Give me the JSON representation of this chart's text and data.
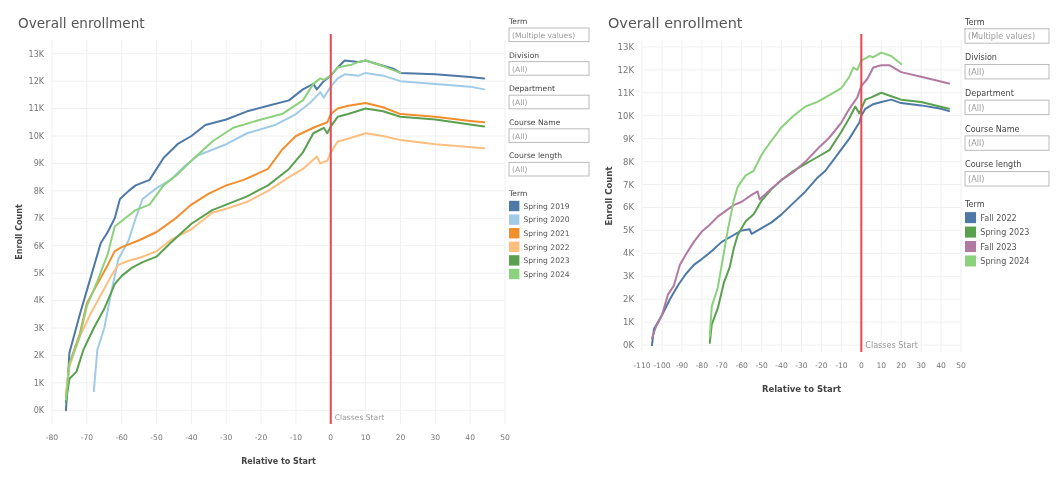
{
  "chart_data": [
    {
      "type": "line",
      "title": "Overall enrollment",
      "xlabel": "Relative to Start",
      "ylabel": "Enroll Count",
      "legend_title": "Term",
      "legend": "right",
      "grid": true,
      "annotations": [
        "Term",
        "(Multiple values)",
        "Division",
        "(All)",
        "Department",
        "(All)",
        "Course Name",
        "(All)",
        "Course length",
        "(All)"
      ],
      "xlim": [
        -80,
        50
      ],
      "xticks": [
        -80,
        -70,
        -60,
        -50,
        -40,
        -30,
        -20,
        -10,
        0,
        10,
        20,
        30,
        40,
        50
      ],
      "ylim": [
        -500,
        13500
      ],
      "yticks": [
        {
          "value": 0,
          "label": "0K"
        },
        {
          "value": 1000,
          "label": "1K"
        },
        {
          "value": 2000,
          "label": "2K"
        },
        {
          "value": 3000,
          "label": "3K"
        },
        {
          "value": 4000,
          "label": "4K"
        },
        {
          "value": 5000,
          "label": "5K"
        },
        {
          "value": 6000,
          "label": "6K"
        },
        {
          "value": 7000,
          "label": "7K"
        },
        {
          "value": 8000,
          "label": "8K"
        },
        {
          "value": 9000,
          "label": "9K"
        },
        {
          "value": 10000,
          "label": "10K"
        },
        {
          "value": 11000,
          "label": "11K"
        },
        {
          "value": 12000,
          "label": "12K"
        },
        {
          "value": 13000,
          "label": "13K"
        }
      ],
      "ref_lines": [
        {
          "axis": "x",
          "value": 0,
          "label": "Classes Start",
          "color": "#e8484f"
        }
      ],
      "series": [
        {
          "name": "Spring 2019",
          "color": "#4e79a7",
          "x": [
            -76,
            -75,
            -72,
            -69,
            -66,
            -64,
            -62,
            -60.5,
            -58,
            -56,
            -52,
            -48,
            -44,
            -40,
            -36,
            -30,
            -24,
            -18,
            -12,
            -8,
            -5,
            -4,
            -2,
            0,
            2,
            4,
            8,
            10,
            14,
            18,
            20,
            30,
            40,
            44
          ],
          "values": [
            0,
            2100,
            3500,
            4800,
            6100,
            6500,
            7000,
            7700,
            8000,
            8200,
            8400,
            9200,
            9700,
            10000,
            10400,
            10600,
            10900,
            11100,
            11300,
            11700,
            11900,
            11700,
            12000,
            12200,
            12500,
            12750,
            12700,
            12750,
            12600,
            12450,
            12300,
            12250,
            12150,
            12100
          ]
        },
        {
          "name": "Spring 2020",
          "color": "#a0cbe8",
          "x": [
            -68,
            -67,
            -65,
            -63,
            -61,
            -58,
            -56,
            -54,
            -50,
            -46,
            -42,
            -38,
            -30,
            -24,
            -16,
            -10,
            -6,
            -3,
            -2,
            0,
            2,
            4,
            8,
            10,
            15,
            20,
            30,
            40,
            44
          ],
          "values": [
            700,
            2200,
            3000,
            4300,
            5500,
            6200,
            7000,
            7700,
            8100,
            8400,
            8900,
            9300,
            9700,
            10100,
            10400,
            10800,
            11200,
            11600,
            11400,
            11800,
            12100,
            12250,
            12200,
            12300,
            12200,
            12000,
            11900,
            11800,
            11700
          ]
        },
        {
          "name": "Spring 2021",
          "color": "#f28e2b",
          "x": [
            -76,
            -75,
            -72,
            -70,
            -67,
            -64,
            -62,
            -60,
            -55,
            -50,
            -45,
            -40,
            -35,
            -30,
            -25,
            -18,
            -14,
            -10,
            -5,
            -1,
            0,
            2,
            5,
            10,
            15,
            20,
            30,
            40,
            44
          ],
          "values": [
            500,
            1700,
            2800,
            3900,
            4600,
            5300,
            5800,
            5950,
            6200,
            6500,
            6950,
            7500,
            7900,
            8200,
            8400,
            8800,
            9500,
            10000,
            10300,
            10500,
            10800,
            11000,
            11100,
            11200,
            11050,
            10800,
            10700,
            10550,
            10500
          ]
        },
        {
          "name": "Spring 2022",
          "color": "#ffbe7d",
          "x": [
            -76,
            -75,
            -72,
            -69,
            -66,
            -63,
            -61,
            -58,
            -54,
            -50,
            -46,
            -40,
            -34,
            -30,
            -24,
            -18,
            -12,
            -8,
            -4,
            -3,
            -1,
            0,
            2,
            5,
            10,
            15,
            20,
            30,
            44
          ],
          "values": [
            600,
            1600,
            2700,
            3500,
            4200,
            4900,
            5300,
            5450,
            5600,
            5800,
            6200,
            6600,
            7200,
            7350,
            7600,
            8000,
            8500,
            8800,
            9250,
            9000,
            9100,
            9400,
            9800,
            9900,
            10100,
            10000,
            9850,
            9700,
            9550
          ]
        },
        {
          "name": "Spring 2023",
          "color": "#59a14f",
          "x": [
            -76,
            -75,
            -73,
            -71,
            -68,
            -65,
            -62,
            -60,
            -57,
            -54,
            -50,
            -46,
            -40,
            -34,
            -30,
            -24,
            -18,
            -12,
            -8,
            -5,
            -2,
            -1,
            0,
            2,
            5,
            10,
            15,
            20,
            30,
            44
          ],
          "values": [
            300,
            1150,
            1400,
            2200,
            3000,
            3700,
            4600,
            4900,
            5200,
            5400,
            5600,
            6100,
            6800,
            7300,
            7500,
            7800,
            8200,
            8800,
            9400,
            10100,
            10300,
            10100,
            10350,
            10700,
            10800,
            11000,
            10900,
            10700,
            10600,
            10350
          ]
        },
        {
          "name": "Spring 2024",
          "color": "#8cd17d",
          "x": [
            -76,
            -75,
            -72,
            -70,
            -67,
            -64,
            -62,
            -59,
            -56,
            -52,
            -48,
            -44,
            -40,
            -34,
            -28,
            -20,
            -14,
            -8,
            -5,
            -3,
            -2,
            0,
            2,
            4,
            6,
            8,
            10,
            15,
            20
          ],
          "values": [
            400,
            1700,
            2700,
            3800,
            4700,
            5700,
            6700,
            7000,
            7300,
            7500,
            8200,
            8600,
            9100,
            9800,
            10300,
            10600,
            10800,
            11300,
            11900,
            12100,
            12050,
            12200,
            12500,
            12550,
            12600,
            12700,
            12750,
            12550,
            12300
          ]
        }
      ]
    },
    {
      "type": "line",
      "title": "Overall enrollment",
      "xlabel": "Relative to Start",
      "ylabel": "Enroll Count",
      "legend_title": "Term",
      "legend": "right",
      "grid": true,
      "annotations": [
        "Term",
        "(Multiple values)",
        "Division",
        "(All)",
        "Department",
        "(All)",
        "Course Name",
        "(All)",
        "Course length",
        "(All)"
      ],
      "xlim": [
        -110,
        50
      ],
      "xticks": [
        -110,
        -100,
        -90,
        -80,
        -70,
        -60,
        -50,
        -40,
        -30,
        -20,
        -10,
        0,
        10,
        20,
        30,
        40,
        50
      ],
      "ylim": [
        -300,
        13300
      ],
      "yticks": [
        {
          "value": 0,
          "label": "0K"
        },
        {
          "value": 1000,
          "label": "1K"
        },
        {
          "value": 2000,
          "label": "2K"
        },
        {
          "value": 3000,
          "label": "3K"
        },
        {
          "value": 4000,
          "label": "4K"
        },
        {
          "value": 5000,
          "label": "5K"
        },
        {
          "value": 6000,
          "label": "6K"
        },
        {
          "value": 7000,
          "label": "7K"
        },
        {
          "value": 8000,
          "label": "8K"
        },
        {
          "value": 9000,
          "label": "9K"
        },
        {
          "value": 10000,
          "label": "10K"
        },
        {
          "value": 11000,
          "label": "11K"
        },
        {
          "value": 12000,
          "label": "12K"
        },
        {
          "value": 13000,
          "label": "13K"
        }
      ],
      "ref_lines": [
        {
          "axis": "x",
          "value": 0,
          "label": "Classes Start",
          "color": "#e8484f"
        }
      ],
      "series": [
        {
          "name": "Fall 2022",
          "color": "#4e79a7",
          "x": [
            -105,
            -104,
            -100,
            -96,
            -92,
            -88,
            -84,
            -80,
            -75,
            -70,
            -64,
            -60,
            -56,
            -55,
            -50,
            -45,
            -40,
            -34,
            -28,
            -22,
            -18,
            -12,
            -6,
            -1,
            0,
            2,
            6,
            10,
            15,
            20,
            30,
            40,
            44
          ],
          "values": [
            0,
            700,
            1300,
            2000,
            2600,
            3100,
            3500,
            3750,
            4100,
            4500,
            4800,
            5000,
            5050,
            4850,
            5100,
            5350,
            5700,
            6200,
            6700,
            7300,
            7600,
            8300,
            9000,
            9700,
            10000,
            10300,
            10500,
            10600,
            10700,
            10550,
            10450,
            10300,
            10200
          ]
        },
        {
          "name": "Spring 2023",
          "color": "#59a14f",
          "x": [
            -76,
            -75,
            -72,
            -69,
            -66,
            -64,
            -62,
            -58,
            -54,
            -50,
            -45,
            -40,
            -34,
            -28,
            -22,
            -16,
            -10,
            -6,
            -3,
            -1,
            0,
            2,
            5,
            10,
            15,
            20,
            30,
            44
          ],
          "values": [
            100,
            900,
            1600,
            2700,
            3400,
            4200,
            4800,
            5400,
            5700,
            6300,
            6800,
            7200,
            7600,
            7900,
            8200,
            8500,
            9300,
            9900,
            10400,
            10100,
            10300,
            10700,
            10800,
            11000,
            10850,
            10700,
            10600,
            10300
          ]
        },
        {
          "name": "Fall 2023",
          "color": "#b07aa1",
          "x": [
            -105,
            -103,
            -100,
            -97,
            -94,
            -91,
            -88,
            -84,
            -80,
            -76,
            -72,
            -68,
            -64,
            -60,
            -55,
            -52,
            -51,
            -46,
            -40,
            -34,
            -28,
            -22,
            -16,
            -10,
            -6,
            -2,
            0,
            3,
            6,
            10,
            14,
            20,
            30,
            44
          ],
          "values": [
            300,
            800,
            1300,
            2200,
            2600,
            3500,
            3950,
            4500,
            4950,
            5250,
            5600,
            5850,
            6100,
            6250,
            6550,
            6700,
            6350,
            6750,
            7200,
            7550,
            8000,
            8550,
            9050,
            9700,
            10300,
            10800,
            11300,
            11600,
            12100,
            12200,
            12200,
            11900,
            11700,
            11400
          ]
        },
        {
          "name": "Spring 2024",
          "color": "#8cd17d",
          "x": [
            -76,
            -75,
            -72,
            -70,
            -67,
            -64,
            -62,
            -58,
            -54,
            -50,
            -46,
            -40,
            -34,
            -28,
            -22,
            -16,
            -10,
            -6,
            -4,
            -2,
            0,
            4,
            6,
            10,
            15,
            20
          ],
          "values": [
            400,
            1700,
            2500,
            3500,
            5000,
            6300,
            6900,
            7400,
            7600,
            8300,
            8800,
            9500,
            10000,
            10400,
            10600,
            10900,
            11200,
            11700,
            12100,
            12000,
            12400,
            12600,
            12550,
            12750,
            12600,
            12250
          ]
        }
      ]
    }
  ]
}
